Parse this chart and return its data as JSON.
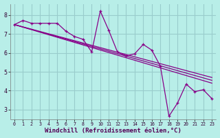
{
  "background_color": "#b8eee8",
  "grid_color": "#99cccc",
  "line_color": "#880088",
  "marker_color": "#880088",
  "xlabel": "Windchill (Refroidissement éolien,°C)",
  "xlabel_fontsize": 6.5,
  "tick_fontsize": 6,
  "xlim": [
    -0.5,
    23.5
  ],
  "ylim": [
    2.5,
    8.6
  ],
  "yticks": [
    3,
    4,
    5,
    6,
    7,
    8
  ],
  "xticks": [
    0,
    1,
    2,
    3,
    4,
    5,
    6,
    7,
    8,
    9,
    10,
    11,
    12,
    13,
    14,
    15,
    16,
    17,
    18,
    19,
    20,
    21,
    22,
    23
  ],
  "series": {
    "main": [
      [
        0,
        7.5
      ],
      [
        1,
        7.72
      ],
      [
        2,
        7.57
      ],
      [
        3,
        7.57
      ],
      [
        4,
        7.57
      ],
      [
        5,
        7.57
      ],
      [
        6,
        7.15
      ],
      [
        7,
        6.87
      ],
      [
        8,
        6.72
      ],
      [
        9,
        6.05
      ],
      [
        10,
        8.22
      ],
      [
        11,
        7.18
      ],
      [
        12,
        6.05
      ],
      [
        13,
        5.85
      ],
      [
        14,
        5.95
      ],
      [
        15,
        6.45
      ],
      [
        16,
        6.15
      ],
      [
        17,
        5.3
      ],
      [
        18,
        2.65
      ],
      [
        19,
        3.35
      ],
      [
        20,
        4.35
      ],
      [
        21,
        3.95
      ],
      [
        22,
        4.05
      ],
      [
        23,
        3.58
      ]
    ],
    "linear1": [
      [
        0,
        7.5
      ],
      [
        23,
        4.7
      ]
    ],
    "linear2": [
      [
        0,
        7.5
      ],
      [
        23,
        4.55
      ]
    ],
    "linear3": [
      [
        0,
        7.5
      ],
      [
        23,
        4.4
      ]
    ]
  }
}
